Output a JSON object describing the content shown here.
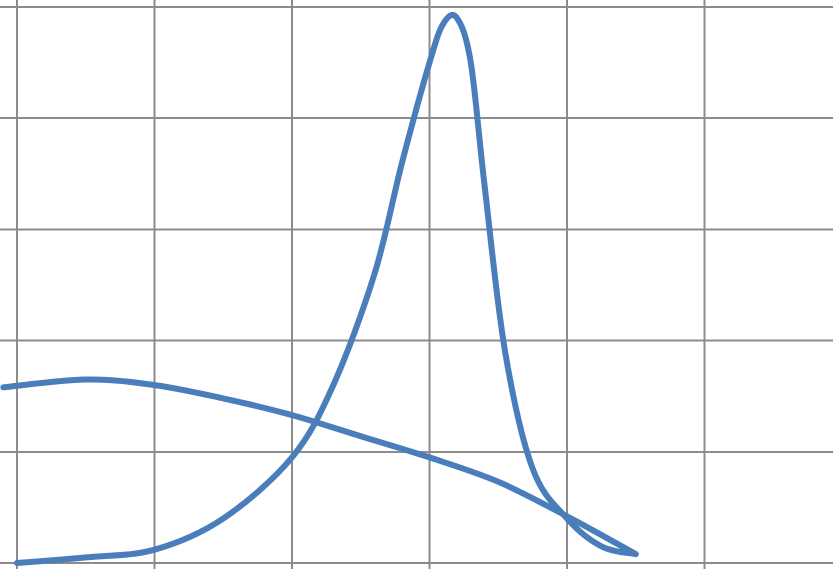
{
  "chart_data": {
    "type": "line",
    "title": "",
    "xlabel": "",
    "ylabel": "",
    "grid": true,
    "legend": "none",
    "xlim": [
      -0.1,
      5.95
    ],
    "ylim": [
      0,
      5
    ],
    "x_gridlines": [
      0,
      1,
      2,
      3,
      4,
      5
    ],
    "y_gridlines": [
      0,
      1,
      2,
      3,
      4,
      5
    ],
    "series_color": "#4a7ebb",
    "grid_color": "#8c8c8c",
    "series": [
      {
        "points": [
          [
            0.0,
            0.0
          ],
          [
            0.5,
            0.05
          ],
          [
            1.0,
            0.12
          ],
          [
            1.5,
            0.4
          ],
          [
            2.0,
            0.95
          ],
          [
            2.3,
            1.6
          ],
          [
            2.6,
            2.6
          ],
          [
            2.8,
            3.6
          ],
          [
            3.0,
            4.5
          ],
          [
            3.1,
            4.85
          ],
          [
            3.2,
            4.9
          ],
          [
            3.3,
            4.5
          ],
          [
            3.4,
            3.4
          ],
          [
            3.55,
            1.9
          ],
          [
            3.75,
            0.85
          ],
          [
            4.0,
            0.4
          ],
          [
            4.25,
            0.15
          ],
          [
            4.5,
            0.08
          ]
        ]
      },
      {
        "points": [
          [
            -0.1,
            1.58
          ],
          [
            0.5,
            1.65
          ],
          [
            1.0,
            1.6
          ],
          [
            1.5,
            1.48
          ],
          [
            2.0,
            1.33
          ],
          [
            2.5,
            1.14
          ],
          [
            3.0,
            0.95
          ],
          [
            3.5,
            0.73
          ],
          [
            4.0,
            0.42
          ],
          [
            4.5,
            0.08
          ]
        ]
      }
    ]
  }
}
